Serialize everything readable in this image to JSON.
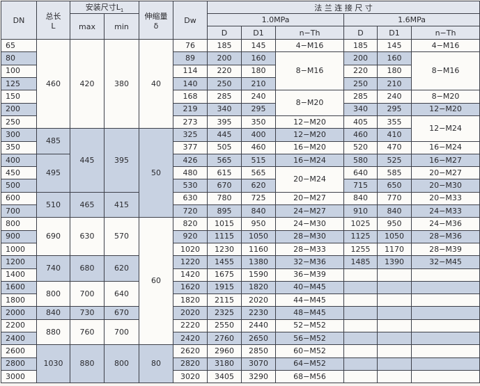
{
  "header": {
    "dn": "DN",
    "length_cn": "总长",
    "length_l": "L",
    "install": "安装尺寸L",
    "install_sub": "1",
    "max": "max",
    "min": "min",
    "expansion_cn": "伸缩量",
    "expansion_sym": "δ",
    "dw": "Dw",
    "flange": "法 兰 连 接 尺 寸",
    "p10": "1.0MPa",
    "p16": "1.6MPa",
    "d": "D",
    "d1": "D1",
    "nth": "n−Th"
  },
  "colors": {
    "shaded_row": "#c8d2e2",
    "white_row": "#fcfbf8",
    "header": "#e2e6ee"
  },
  "rows": {
    "dn": [
      "65",
      "80",
      "100",
      "125",
      "150",
      "200",
      "250",
      "300",
      "350",
      "400",
      "450",
      "500",
      "600",
      "700",
      "800",
      "900",
      "1000",
      "1200",
      "1400",
      "1600",
      "1800",
      "2000",
      "2200",
      "2400",
      "2600",
      "2800",
      "3000"
    ],
    "dw": [
      "76",
      "89",
      "114",
      "140",
      "168",
      "219",
      "273",
      "325",
      "377",
      "426",
      "480",
      "530",
      "630",
      "720",
      "820",
      "920",
      "1020",
      "1220",
      "1420",
      "1620",
      "1820",
      "2020",
      "2220",
      "2420",
      "2620",
      "2820",
      "3020"
    ],
    "d_10": [
      "185",
      "200",
      "220",
      "250",
      "285",
      "340",
      "395",
      "445",
      "505",
      "565",
      "615",
      "670",
      "780",
      "895",
      "1015",
      "1115",
      "1230",
      "1455",
      "1675",
      "1915",
      "2115",
      "2325",
      "2550",
      "2760",
      "2960",
      "3180",
      "3405"
    ],
    "d1_10": [
      "145",
      "160",
      "180",
      "210",
      "240",
      "295",
      "350",
      "400",
      "460",
      "515",
      "565",
      "620",
      "725",
      "840",
      "950",
      "1050",
      "1160",
      "1380",
      "1590",
      "1820",
      "2020",
      "2230",
      "2440",
      "2650",
      "2850",
      "3070",
      "3290"
    ],
    "d_16": [
      "185",
      "200",
      "220",
      "250",
      "285",
      "340",
      "405",
      "460",
      "520",
      "580",
      "640",
      "715",
      "840",
      "910",
      "1025",
      "1125",
      "1255",
      "1485",
      "",
      "",
      "",
      "",
      "",
      "",
      "",
      "",
      ""
    ],
    "d1_16": [
      "145",
      "160",
      "180",
      "210",
      "240",
      "295",
      "355",
      "410",
      "470",
      "525",
      "585",
      "650",
      "770",
      "840",
      "950",
      "1050",
      "1170",
      "1390",
      "",
      "",
      "",
      "",
      "",
      "",
      "",
      "",
      ""
    ]
  },
  "merged": {
    "length": [
      {
        "v": "460",
        "n": 7,
        "shade": false
      },
      {
        "v": "485",
        "n": 2,
        "shade": true
      },
      {
        "v": "495",
        "n": 3,
        "shade": true
      },
      {
        "v": "510",
        "n": 2,
        "shade": true
      },
      {
        "v": "690",
        "n": 3,
        "shade": false
      },
      {
        "v": "740",
        "n": 2,
        "shade": true
      },
      {
        "v": "800",
        "n": 2,
        "shade": false
      },
      {
        "v": "840",
        "n": 1,
        "shade": true
      },
      {
        "v": "880",
        "n": 2,
        "shade": false
      },
      {
        "v": "1030",
        "n": 3,
        "shade": true
      }
    ],
    "max": [
      {
        "v": "420",
        "n": 7,
        "shade": false
      },
      {
        "v": "445",
        "n": 5,
        "shade": true
      },
      {
        "v": "465",
        "n": 2,
        "shade": true
      },
      {
        "v": "630",
        "n": 3,
        "shade": false
      },
      {
        "v": "680",
        "n": 2,
        "shade": true
      },
      {
        "v": "700",
        "n": 2,
        "shade": false
      },
      {
        "v": "730",
        "n": 1,
        "shade": true
      },
      {
        "v": "760",
        "n": 2,
        "shade": false
      },
      {
        "v": "880",
        "n": 3,
        "shade": true
      }
    ],
    "min": [
      {
        "v": "380",
        "n": 7,
        "shade": false
      },
      {
        "v": "395",
        "n": 5,
        "shade": true
      },
      {
        "v": "415",
        "n": 2,
        "shade": true
      },
      {
        "v": "570",
        "n": 3,
        "shade": false
      },
      {
        "v": "620",
        "n": 2,
        "shade": true
      },
      {
        "v": "640",
        "n": 2,
        "shade": false
      },
      {
        "v": "670",
        "n": 1,
        "shade": true
      },
      {
        "v": "700",
        "n": 2,
        "shade": false
      },
      {
        "v": "800",
        "n": 3,
        "shade": true
      }
    ],
    "expansion": [
      {
        "v": "40",
        "n": 7,
        "shade": false
      },
      {
        "v": "50",
        "n": 7,
        "shade": true
      },
      {
        "v": "60",
        "n": 10,
        "shade": false
      },
      {
        "v": "80",
        "n": 3,
        "shade": true
      }
    ],
    "nth_10": [
      {
        "v": "4−M16",
        "n": 1
      },
      {
        "v": "8−M16",
        "n": 3,
        "shade": false
      },
      {
        "v": "8−M20",
        "n": 2,
        "shade": false
      },
      {
        "v": "12−M20",
        "n": 1
      },
      {
        "v": "12−M20",
        "n": 1
      },
      {
        "v": "16−M20",
        "n": 1
      },
      {
        "v": "16−M24",
        "n": 1
      },
      {
        "v": "20−M24",
        "n": 2,
        "shade": false
      },
      {
        "v": "20−M27",
        "n": 1
      },
      {
        "v": "24−M27",
        "n": 1
      },
      {
        "v": "24−M30",
        "n": 1
      },
      {
        "v": "28−M30",
        "n": 1
      },
      {
        "v": "28−M33",
        "n": 1
      },
      {
        "v": "32−M36",
        "n": 1
      },
      {
        "v": "36−M39",
        "n": 1
      },
      {
        "v": "40−M45",
        "n": 1
      },
      {
        "v": "44−M45",
        "n": 1
      },
      {
        "v": "48−M45",
        "n": 1
      },
      {
        "v": "52−M52",
        "n": 1
      },
      {
        "v": "56−M52",
        "n": 1
      },
      {
        "v": "60−M52",
        "n": 1
      },
      {
        "v": "64−M52",
        "n": 1
      },
      {
        "v": "68−M56",
        "n": 1
      }
    ],
    "nth_16": [
      {
        "v": "4−M16",
        "n": 1
      },
      {
        "v": "8−M16",
        "n": 3,
        "shade": false
      },
      {
        "v": "8−M20",
        "n": 1
      },
      {
        "v": "12−M20",
        "n": 1
      },
      {
        "v": "12−M24",
        "n": 2,
        "shade": false
      },
      {
        "v": "16−M24",
        "n": 1
      },
      {
        "v": "16−M27",
        "n": 1
      },
      {
        "v": "20−M27",
        "n": 1
      },
      {
        "v": "20−M30",
        "n": 1
      },
      {
        "v": "20−M33",
        "n": 1
      },
      {
        "v": "24−M33",
        "n": 1
      },
      {
        "v": "24−M36",
        "n": 1
      },
      {
        "v": "28−M36",
        "n": 1
      },
      {
        "v": "28−M39",
        "n": 1
      },
      {
        "v": "32−M45",
        "n": 1
      },
      {
        "v": "",
        "n": 1
      },
      {
        "v": "",
        "n": 1
      },
      {
        "v": "",
        "n": 1
      },
      {
        "v": "",
        "n": 1
      },
      {
        "v": "",
        "n": 1
      },
      {
        "v": "",
        "n": 1
      },
      {
        "v": "",
        "n": 1
      },
      {
        "v": "",
        "n": 1
      },
      {
        "v": "",
        "n": 1
      }
    ]
  }
}
